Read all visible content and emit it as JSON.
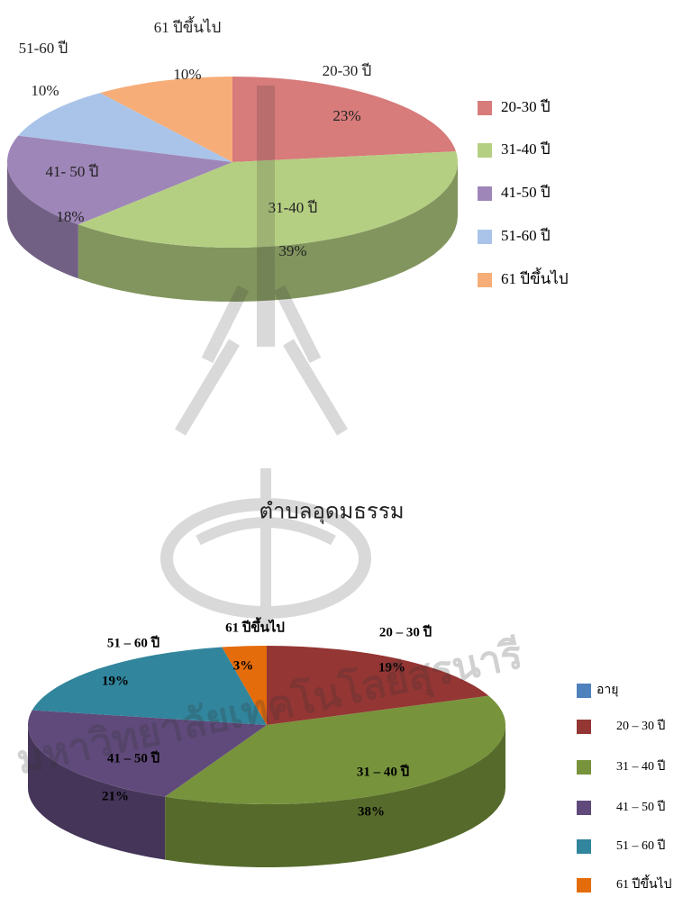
{
  "chart_data": [
    {
      "type": "pie",
      "categories": [
        "20-30 ปี",
        "31-40 ปี",
        "41-50 ปี",
        "51-60 ปี",
        "61 ปีขึ้นไป"
      ],
      "slice_labels": [
        "20-30 ปี",
        "31-40 ปี",
        "41- 50 ปี",
        "51-60 ปี",
        "61 ปีขึ้นไป"
      ],
      "values": [
        23,
        39,
        18,
        10,
        10
      ],
      "value_labels": [
        "23%",
        "39%",
        "18%",
        "10%",
        "10%"
      ],
      "colors": [
        "#d77b7b",
        "#b5cf82",
        "#9e86b8",
        "#a9c4e8",
        "#f6ad78"
      ],
      "legend": "right"
    },
    {
      "type": "pie",
      "title": "ตำบลอุดมธรรม",
      "categories": [
        "20 – 30 ปี",
        "31 – 40 ปี",
        "41 – 50 ปี",
        "51 – 60 ปี",
        "61 ปีขึ้นไป"
      ],
      "series": [
        {
          "name": "อายุ",
          "color": "#4f81bd",
          "values": [
            19,
            38,
            21,
            19,
            3
          ]
        }
      ],
      "value_labels": [
        "19%",
        "38%",
        "21%",
        "19%",
        "3%"
      ],
      "colors": [
        "#943634",
        "#77933c",
        "#604a7b",
        "#31859c",
        "#e46c0a"
      ],
      "legend": "right"
    }
  ],
  "watermark": "มหาวิทยาลัยเทคโนโลยีสุรนารี"
}
